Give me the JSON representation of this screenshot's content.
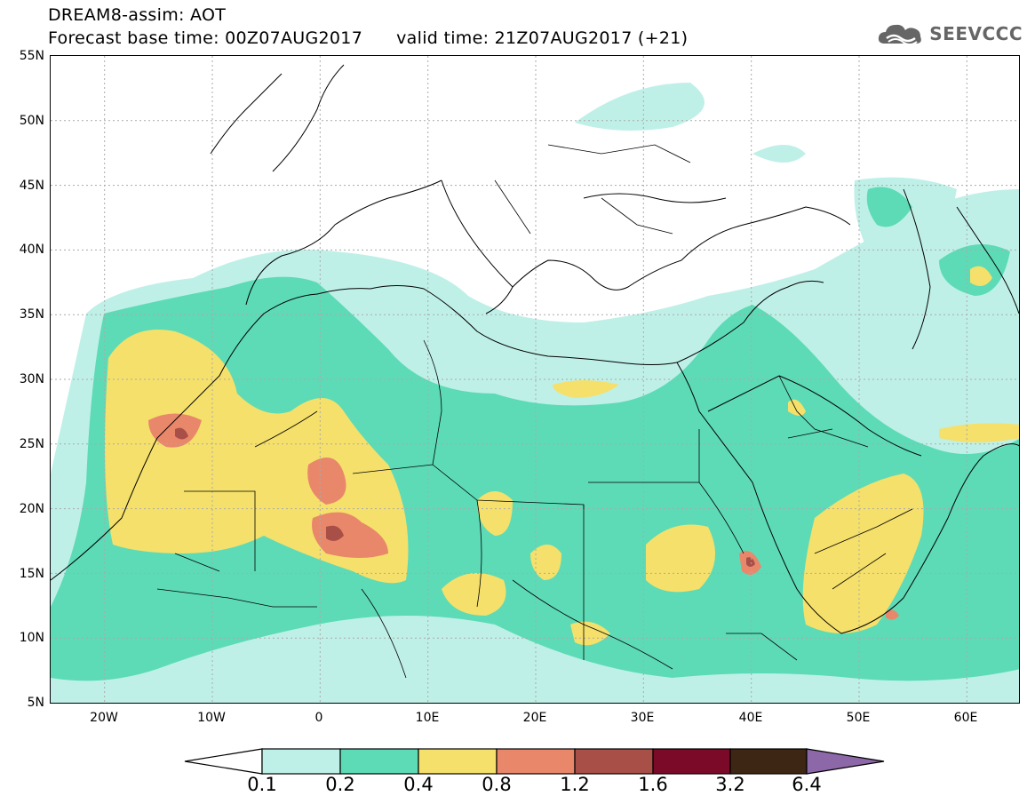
{
  "header": {
    "line1": "DREAM8-assim: AOT",
    "line2": "Forecast base time: 00Z07AUG2017      valid time: 21Z07AUG2017 (+21)"
  },
  "logo": {
    "text": "SEEVCCC",
    "icon": "cloud-icon"
  },
  "map": {
    "lon_range": [
      -25,
      65
    ],
    "lat_range": [
      5,
      55
    ],
    "lat_ticks": [
      "55N",
      "50N",
      "45N",
      "40N",
      "35N",
      "30N",
      "25N",
      "20N",
      "15N",
      "10N",
      "5N"
    ],
    "lon_ticks": [
      "20W",
      "10W",
      "0",
      "10E",
      "20E",
      "30E",
      "40E",
      "50E",
      "60E"
    ],
    "gridlines": true,
    "field": "Aerosol Optical Thickness (dust)"
  },
  "legend": {
    "labels": [
      "0.1",
      "0.2",
      "0.4",
      "0.8",
      "1.2",
      "1.6",
      "3.2",
      "6.4"
    ],
    "colors": [
      "#ffffff",
      "#bff0e8",
      "#5ddbb6",
      "#f5e06b",
      "#e9876b",
      "#a84f47",
      "#7a0a27",
      "#3d2613",
      "#8c68a8"
    ]
  }
}
